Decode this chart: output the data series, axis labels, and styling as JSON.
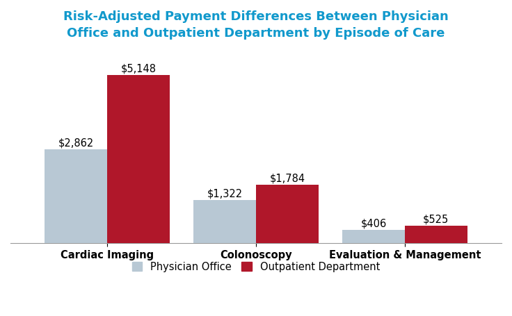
{
  "title": "Risk-Adjusted Payment Differences Between Physician\nOffice and Outpatient Department by Episode of Care",
  "title_color": "#1199cc",
  "categories": [
    "Cardiac Imaging",
    "Colonoscopy",
    "Evaluation & Management"
  ],
  "physician_office": [
    2862,
    1322,
    406
  ],
  "outpatient_department": [
    5148,
    1784,
    525
  ],
  "labels_po": [
    "$2,862",
    "$1,322",
    "$406"
  ],
  "labels_opd": [
    "$5,148",
    "$1,784",
    "$525"
  ],
  "color_po": "#b8c8d4",
  "color_opd": "#b0172a",
  "background_color": "#ffffff",
  "bar_width": 0.42,
  "ylim": [
    0,
    6000
  ],
  "legend_po": "Physician Office",
  "legend_opd": "Outpatient Department",
  "title_fontsize": 13,
  "label_fontsize": 10.5,
  "tick_fontsize": 10.5,
  "legend_fontsize": 10.5
}
